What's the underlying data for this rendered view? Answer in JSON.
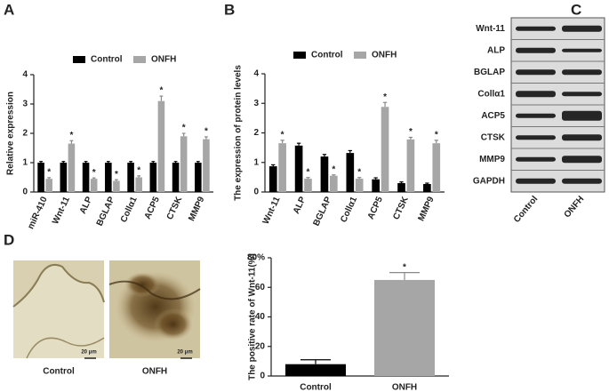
{
  "panel_labels": [
    "A",
    "B",
    "C",
    "D"
  ],
  "chart_data": [
    {
      "type": "bar",
      "ylabel": "Relative expression",
      "categories": [
        "miR-410",
        "Wnt-11",
        "ALP",
        "BGLAP",
        "Collα1",
        "ACP5",
        "CTSK",
        "MMP9"
      ],
      "series": [
        {
          "name": "Control",
          "color": "#000000",
          "values": [
            1,
            1,
            1,
            1,
            1,
            1,
            1,
            1
          ],
          "errors": [
            0.04,
            0.04,
            0.04,
            0.04,
            0.04,
            0.04,
            0.04,
            0.04
          ]
        },
        {
          "name": "ONFH",
          "color": "#a6a6a6",
          "values": [
            0.45,
            1.65,
            0.45,
            0.38,
            0.5,
            3.1,
            1.9,
            1.8
          ],
          "errors": [
            0.04,
            0.1,
            0.03,
            0.04,
            0.05,
            0.17,
            0.1,
            0.08
          ],
          "significance_marks": [
            "*",
            "*",
            "*",
            "*",
            "*",
            "*",
            "*",
            "*"
          ]
        }
      ],
      "ylim": [
        0,
        4
      ],
      "yticks": [
        0,
        1,
        2,
        3,
        4
      ],
      "legend": "top"
    },
    {
      "type": "bar",
      "ylabel": "The expression of protein levels",
      "categories": [
        "Wnt-11",
        "ALP",
        "BGLAP",
        "Collα1",
        "ACP5",
        "CTSK",
        "MMP9"
      ],
      "series": [
        {
          "name": "Control",
          "color": "#000000",
          "values": [
            0.87,
            1.57,
            1.2,
            1.32,
            0.43,
            0.3,
            0.27
          ],
          "errors": [
            0.05,
            0.08,
            0.07,
            0.08,
            0.05,
            0.04,
            0.03
          ]
        },
        {
          "name": "ONFH",
          "color": "#a6a6a6",
          "values": [
            1.65,
            0.45,
            0.55,
            0.45,
            2.88,
            1.78,
            1.65
          ],
          "errors": [
            0.1,
            0.04,
            0.03,
            0.04,
            0.15,
            0.07,
            0.1
          ],
          "significance_marks": [
            "*",
            "*",
            "*",
            "*",
            "*",
            "*",
            "*"
          ]
        }
      ],
      "ylim": [
        0,
        4
      ],
      "yticks": [
        0,
        1,
        2,
        3,
        4
      ],
      "legend": "top"
    },
    {
      "type": "bar",
      "ylabel": "The positive rate of Wnt-11(%)",
      "categories": [
        "Control",
        "ONFH"
      ],
      "series": [
        {
          "colors": [
            "#000000",
            "#a6a6a6"
          ],
          "values": [
            8,
            65
          ],
          "errors": [
            3,
            5
          ],
          "significance_marks": [
            null,
            "*"
          ]
        }
      ],
      "ylim": [
        0,
        80
      ],
      "yticks": [
        0,
        20,
        40,
        60,
        {
          "value": 80,
          "label": "80%"
        }
      ]
    }
  ],
  "blot": {
    "rows": [
      "Wnt-11",
      "ALP",
      "BGLAP",
      "Collα1",
      "ACP5",
      "CTSK",
      "MMP9",
      "GAPDH"
    ],
    "columns": [
      "Control",
      "ONFH"
    ]
  },
  "micrographs": [
    {
      "label": "Control",
      "scale": "20 μm"
    },
    {
      "label": "ONFH",
      "scale": "20 μm"
    }
  ]
}
